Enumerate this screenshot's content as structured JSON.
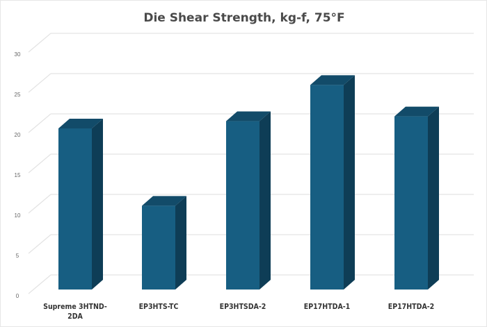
{
  "chart_data": {
    "type": "bar",
    "title": "Die Shear Strength, kg-f, 75°F",
    "categories": [
      "Supreme 3HTND-2DA",
      "EP3HTS-TC",
      "EP3HTSDA-2",
      "EP17HTDA-1",
      "EP17HTDA-2"
    ],
    "category_lines": [
      [
        "Supreme 3HTND-",
        "2DA"
      ],
      [
        "EP3HTS-TC"
      ],
      [
        "EP3HTSDA-2"
      ],
      [
        "EP17HTDA-1"
      ],
      [
        "EP17HTDA-2"
      ]
    ],
    "values": [
      20,
      10.4,
      20.9,
      25.4,
      21.5
    ],
    "ylim": [
      0,
      30
    ],
    "yticks": [
      0,
      5,
      10,
      15,
      20,
      25,
      30
    ],
    "xlabel": "",
    "ylabel": "",
    "grid": true,
    "style": "3d-column",
    "colors": {
      "front": "#175e82",
      "side": "#0e3d56",
      "top": "#124b69",
      "grid": "#e3e3e3"
    }
  }
}
